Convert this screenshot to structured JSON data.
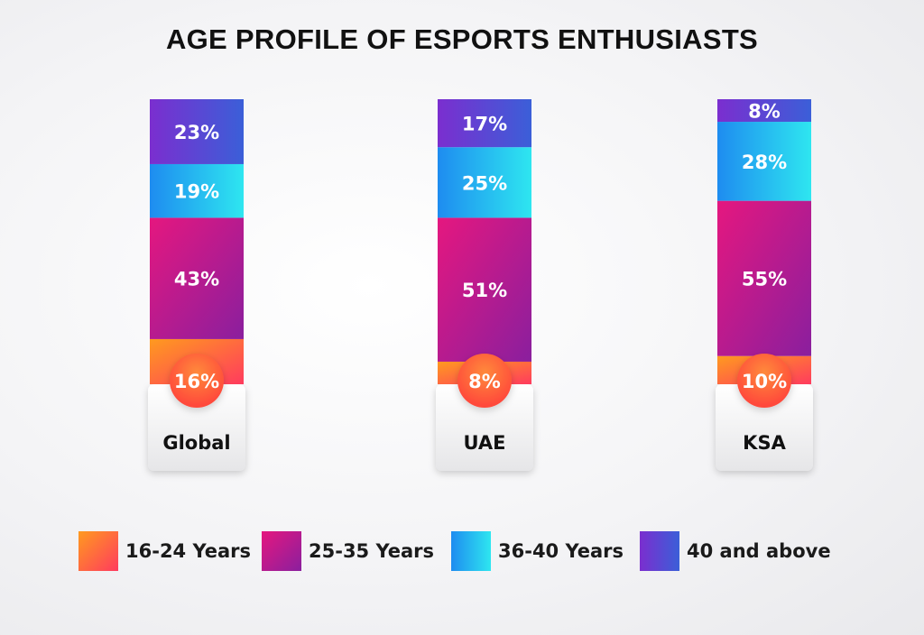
{
  "title": "AGE PROFILE OF ESPORTS ENTHUSIASTS",
  "chart_data": {
    "type": "bar",
    "stacked": true,
    "title": "AGE PROFILE OF ESPORTS ENTHUSIASTS",
    "categories": [
      "Global",
      "UAE",
      "KSA"
    ],
    "series": [
      {
        "name": "16-24 Years",
        "values": [
          16,
          8,
          10
        ],
        "labels": [
          "16%",
          "8%",
          "10%"
        ],
        "color": "#ff3b5e",
        "color2": "#ff9a1f"
      },
      {
        "name": "25-35 Years",
        "values": [
          43,
          51,
          55
        ],
        "labels": [
          "43%",
          "51%",
          "55%"
        ],
        "color": "#e5177f",
        "color2": "#8a1f9e"
      },
      {
        "name": "36-40 Years",
        "values": [
          19,
          25,
          28
        ],
        "labels": [
          "19%",
          "25%",
          "28%"
        ],
        "color": "#1e8cf0",
        "color2": "#2ee6f0"
      },
      {
        "name": "40 and above",
        "values": [
          23,
          17,
          8
        ],
        "labels": [
          "23%",
          "17%",
          "8%"
        ],
        "color": "#7b2ecf",
        "color2": "#3b5fd8"
      }
    ],
    "ylim": [
      0,
      100
    ],
    "grid": false,
    "legend": "bottom"
  }
}
